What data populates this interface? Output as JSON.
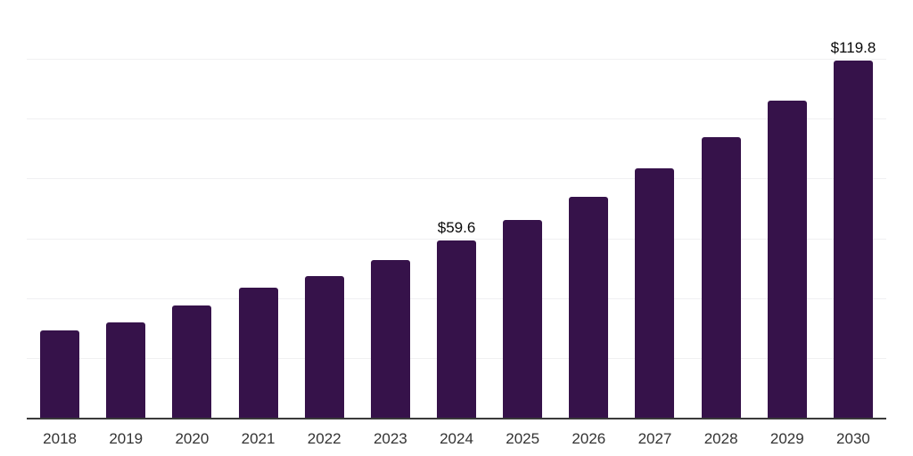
{
  "chart_data": {
    "type": "bar",
    "title": "",
    "xlabel": "",
    "ylabel": "",
    "categories": [
      "2018",
      "2019",
      "2020",
      "2021",
      "2022",
      "2023",
      "2024",
      "2025",
      "2026",
      "2027",
      "2028",
      "2029",
      "2030"
    ],
    "values": [
      29.5,
      32.3,
      37.7,
      43.8,
      47.7,
      52.9,
      59.6,
      66.4,
      74.3,
      83.7,
      94.2,
      106.2,
      119.8
    ],
    "value_labels": [
      {
        "category": "2024",
        "text": "$59.6"
      },
      {
        "category": "2030",
        "text": "$119.8"
      }
    ],
    "ylim": [
      0,
      140
    ],
    "grid_step": 20,
    "grid": "horizontal-only",
    "legend": "none",
    "y_tick_labels_visible": false,
    "colors": {
      "bar": "#36124A",
      "axis_line": "#3a3a3a",
      "gridline": "#f0f0f2",
      "x_tick_label": "#333333",
      "value_label": "#0a0a0a",
      "background": "#ffffff"
    }
  }
}
